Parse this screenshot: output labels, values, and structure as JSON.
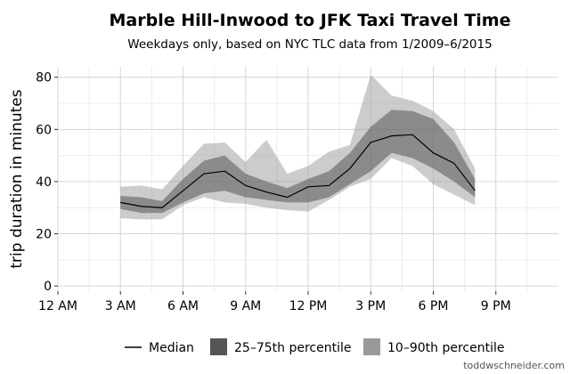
{
  "chart_data": {
    "type": "area",
    "title": "Marble Hill-Inwood to JFK Taxi Travel Time",
    "subtitle": "Weekdays only, based on NYC TLC data from 1/2009–6/2015",
    "xlabel": "",
    "ylabel": "trip duration in minutes",
    "xlim": [
      0,
      24
    ],
    "ylim": [
      -2,
      84
    ],
    "x_ticks": [
      {
        "value": 0,
        "label": "12 AM"
      },
      {
        "value": 3,
        "label": "3 AM"
      },
      {
        "value": 6,
        "label": "6 AM"
      },
      {
        "value": 9,
        "label": "9 AM"
      },
      {
        "value": 12,
        "label": "12 PM"
      },
      {
        "value": 15,
        "label": "3 PM"
      },
      {
        "value": 18,
        "label": "6 PM"
      },
      {
        "value": 21,
        "label": "9 PM"
      }
    ],
    "y_ticks": [
      {
        "value": 0,
        "label": "0"
      },
      {
        "value": 20,
        "label": "20"
      },
      {
        "value": 40,
        "label": "40"
      },
      {
        "value": 60,
        "label": "60"
      },
      {
        "value": 80,
        "label": "80"
      }
    ],
    "grid": true,
    "legend_position": "bottom",
    "x": [
      3,
      4,
      5,
      6,
      7,
      8,
      9,
      10,
      11,
      12,
      13,
      14,
      15,
      16,
      17,
      18,
      19,
      20
    ],
    "series": [
      {
        "name": "Median",
        "type": "line",
        "color": "#000000",
        "values": [
          32,
          30.5,
          30,
          36.5,
          43,
          44,
          38.5,
          36,
          34,
          38,
          38.5,
          45,
          55,
          57.5,
          58,
          51,
          47,
          36.5
        ]
      },
      {
        "name": "25–75th percentile",
        "type": "band",
        "color": "#555555",
        "lower": [
          29.5,
          28,
          28,
          32,
          35.5,
          36.5,
          34,
          33,
          32,
          32,
          34,
          39,
          44,
          51,
          49,
          45,
          40,
          34
        ],
        "upper": [
          34.5,
          34,
          32.5,
          41,
          48,
          50,
          43,
          40,
          37.5,
          41,
          44,
          51,
          61,
          67.5,
          67,
          64,
          55,
          41
        ]
      },
      {
        "name": "10–90th percentile",
        "type": "band",
        "color": "#999999",
        "lower": [
          26,
          25.5,
          25.5,
          31,
          34,
          32,
          31.5,
          30,
          29,
          28.5,
          33,
          38,
          41,
          49,
          46,
          39,
          35,
          31
        ],
        "upper": [
          38,
          38.5,
          37,
          46,
          54.5,
          55,
          47.5,
          56,
          43,
          46,
          51.5,
          54,
          81,
          73,
          71,
          67,
          60,
          45
        ]
      }
    ],
    "watermark": "toddwschneider.com"
  }
}
